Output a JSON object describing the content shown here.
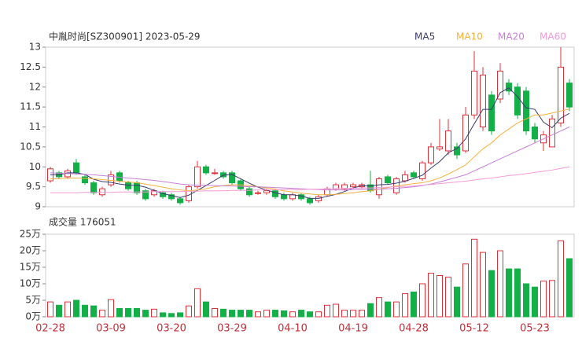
{
  "chart_data": [
    {
      "type": "candlestick",
      "title": "中胤时尚[SZ300901] 2023-05-29",
      "categories": [
        "02-28",
        null,
        null,
        null,
        null,
        null,
        null,
        "03-09",
        null,
        null,
        null,
        null,
        null,
        null,
        "03-20",
        null,
        null,
        null,
        null,
        null,
        null,
        "03-29",
        null,
        null,
        null,
        null,
        null,
        null,
        "04-10",
        null,
        null,
        null,
        null,
        null,
        null,
        "04-19",
        null,
        null,
        null,
        null,
        null,
        null,
        "04-28",
        null,
        null,
        null,
        null,
        null,
        null,
        "05-12",
        null,
        null,
        null,
        null,
        null,
        null,
        "05-23",
        null,
        null,
        null,
        null
      ],
      "open": [
        9.65,
        9.85,
        9.75,
        10.1,
        9.75,
        9.6,
        9.3,
        9.55,
        9.85,
        9.6,
        9.6,
        9.4,
        9.3,
        9.35,
        9.3,
        9.2,
        9.15,
        9.5,
        10.0,
        9.85,
        9.85,
        9.85,
        9.65,
        9.45,
        9.35,
        9.35,
        9.4,
        9.3,
        9.2,
        9.3,
        9.2,
        9.15,
        9.3,
        9.45,
        9.45,
        9.5,
        9.5,
        9.55,
        9.3,
        9.75,
        9.35,
        9.65,
        9.85,
        9.7,
        10.1,
        10.45,
        10.4,
        10.5,
        10.4,
        11.3,
        11.0,
        11.8,
        11.7,
        12.1,
        12.0,
        11.9,
        11.0,
        10.6,
        10.5,
        11.1,
        12.1
      ],
      "high": [
        10.0,
        9.9,
        9.95,
        10.2,
        9.8,
        9.65,
        9.5,
        9.9,
        9.9,
        9.65,
        9.65,
        9.45,
        9.45,
        9.4,
        9.35,
        9.25,
        9.55,
        10.15,
        10.05,
        9.95,
        9.9,
        9.9,
        9.7,
        9.5,
        9.4,
        9.45,
        9.45,
        9.35,
        9.35,
        9.35,
        9.25,
        9.3,
        9.5,
        9.6,
        9.6,
        9.6,
        9.6,
        9.9,
        9.75,
        9.8,
        9.75,
        9.9,
        9.9,
        10.15,
        10.6,
        11.2,
        11.2,
        10.6,
        11.5,
        12.9,
        12.5,
        11.9,
        12.6,
        12.2,
        12.1,
        12.0,
        11.1,
        10.9,
        11.3,
        13.0,
        12.2
      ],
      "low": [
        9.6,
        9.7,
        9.7,
        9.8,
        9.55,
        9.3,
        9.25,
        9.5,
        9.6,
        9.4,
        9.3,
        9.15,
        9.25,
        9.2,
        9.15,
        9.05,
        9.1,
        9.45,
        9.8,
        9.8,
        9.7,
        9.55,
        9.4,
        9.25,
        9.3,
        9.3,
        9.2,
        9.15,
        9.15,
        9.15,
        9.05,
        9.1,
        9.25,
        9.4,
        9.4,
        9.45,
        9.45,
        9.35,
        9.2,
        9.55,
        9.3,
        9.6,
        9.7,
        9.65,
        10.05,
        10.4,
        10.3,
        10.2,
        10.35,
        11.2,
        10.9,
        10.8,
        11.6,
        11.8,
        11.2,
        10.8,
        10.6,
        10.4,
        10.5,
        11.0,
        11.4
      ],
      "close": [
        9.95,
        9.75,
        9.9,
        9.85,
        9.6,
        9.35,
        9.45,
        9.8,
        9.65,
        9.45,
        9.35,
        9.2,
        9.4,
        9.25,
        9.2,
        9.1,
        9.5,
        10.0,
        9.85,
        9.85,
        9.75,
        9.6,
        9.45,
        9.3,
        9.35,
        9.4,
        9.25,
        9.2,
        9.3,
        9.2,
        9.1,
        9.25,
        9.45,
        9.55,
        9.55,
        9.55,
        9.55,
        9.4,
        9.7,
        9.6,
        9.7,
        9.8,
        9.75,
        10.1,
        10.5,
        10.5,
        10.9,
        10.3,
        11.3,
        12.4,
        12.3,
        10.9,
        12.4,
        11.9,
        11.3,
        10.9,
        10.7,
        10.8,
        11.2,
        12.5,
        11.5
      ],
      "up_color": "#e0303a",
      "down_color": "#12b046",
      "series": [
        {
          "name": "MA5",
          "color": "#3a3a6e",
          "values": [
            9.8,
            9.8,
            9.85,
            9.85,
            9.81,
            9.69,
            9.63,
            9.61,
            9.57,
            9.54,
            9.54,
            9.49,
            9.41,
            9.33,
            9.28,
            9.23,
            9.29,
            9.41,
            9.53,
            9.66,
            9.79,
            9.81,
            9.7,
            9.59,
            9.49,
            9.42,
            9.35,
            9.3,
            9.3,
            9.27,
            9.21,
            9.21,
            9.26,
            9.31,
            9.38,
            9.47,
            9.53,
            9.52,
            9.55,
            9.56,
            9.59,
            9.64,
            9.71,
            9.79,
            9.97,
            10.13,
            10.35,
            10.46,
            10.7,
            11.08,
            11.44,
            11.44,
            11.86,
            11.98,
            11.76,
            11.48,
            11.44,
            11.12,
            10.98,
            11.22,
            11.34
          ]
        },
        {
          "name": "MA10",
          "color": "#f5b13d",
          "values": [
            9.7,
            9.7,
            9.72,
            9.72,
            9.71,
            9.7,
            9.68,
            9.66,
            9.64,
            9.62,
            9.6,
            9.57,
            9.53,
            9.49,
            9.45,
            9.42,
            9.4,
            9.42,
            9.45,
            9.5,
            9.53,
            9.55,
            9.55,
            9.53,
            9.5,
            9.47,
            9.44,
            9.4,
            9.37,
            9.34,
            9.32,
            9.3,
            9.3,
            9.31,
            9.33,
            9.35,
            9.38,
            9.4,
            9.44,
            9.48,
            9.52,
            9.55,
            9.58,
            9.6,
            9.65,
            9.72,
            9.82,
            9.93,
            10.05,
            10.25,
            10.45,
            10.6,
            10.8,
            10.95,
            11.1,
            11.2,
            11.3,
            11.3,
            11.35,
            11.4,
            11.45
          ]
        },
        {
          "name": "MA20",
          "color": "#c77fd6",
          "values": [
            9.85,
            9.84,
            9.83,
            9.82,
            9.81,
            9.8,
            9.78,
            9.76,
            9.74,
            9.72,
            9.7,
            9.68,
            9.66,
            9.63,
            9.6,
            9.57,
            9.55,
            9.54,
            9.54,
            9.53,
            9.52,
            9.52,
            9.51,
            9.5,
            9.5,
            9.49,
            9.48,
            9.47,
            9.46,
            9.45,
            9.44,
            9.43,
            9.42,
            9.42,
            9.42,
            9.43,
            9.43,
            9.44,
            9.44,
            9.45,
            9.46,
            9.48,
            9.5,
            9.53,
            9.57,
            9.62,
            9.68,
            9.74,
            9.8,
            9.9,
            10.0,
            10.1,
            10.2,
            10.3,
            10.4,
            10.5,
            10.6,
            10.7,
            10.8,
            10.9,
            11.0
          ]
        },
        {
          "name": "MA60",
          "color": "#f29bd6",
          "values": [
            9.35,
            9.35,
            9.35,
            9.35,
            9.36,
            9.36,
            9.36,
            9.36,
            9.37,
            9.37,
            9.37,
            9.37,
            9.38,
            9.38,
            9.38,
            9.38,
            9.39,
            9.39,
            9.4,
            9.4,
            9.4,
            9.41,
            9.41,
            9.41,
            9.42,
            9.42,
            9.42,
            9.43,
            9.43,
            9.43,
            9.44,
            9.44,
            9.45,
            9.45,
            9.46,
            9.46,
            9.47,
            9.47,
            9.48,
            9.49,
            9.5,
            9.51,
            9.52,
            9.54,
            9.56,
            9.58,
            9.6,
            9.62,
            9.64,
            9.67,
            9.7,
            9.72,
            9.75,
            9.78,
            9.8,
            9.83,
            9.86,
            9.89,
            9.92,
            9.96,
            10.0
          ]
        }
      ],
      "ylim": [
        9,
        13
      ],
      "yticks": [
        9,
        9.5,
        10,
        10.5,
        11,
        11.5,
        12,
        12.5,
        13
      ]
    },
    {
      "type": "bar",
      "title": "成交量 176051",
      "values": [
        45000,
        35000,
        45000,
        50000,
        35000,
        33000,
        20000,
        52000,
        25000,
        25000,
        25000,
        20000,
        23000,
        12000,
        10000,
        12000,
        33000,
        85000,
        45000,
        25000,
        23000,
        20000,
        20000,
        20000,
        15000,
        20000,
        20000,
        18000,
        15000,
        20000,
        15000,
        15000,
        35000,
        38000,
        20000,
        20000,
        20000,
        40000,
        58000,
        45000,
        45000,
        70000,
        75000,
        100000,
        132000,
        125000,
        120000,
        90000,
        160000,
        235000,
        195000,
        140000,
        200000,
        145000,
        145000,
        100000,
        90000,
        108000,
        110000,
        230000,
        176051
      ],
      "ylim": [
        0,
        250000
      ],
      "yticks": [
        {
          "value": 0,
          "label": "0万"
        },
        {
          "value": 50000,
          "label": "5万"
        },
        {
          "value": 100000,
          "label": "10万"
        },
        {
          "value": 150000,
          "label": "15万"
        },
        {
          "value": 200000,
          "label": "20万"
        },
        {
          "value": 250000,
          "label": "25万"
        }
      ]
    }
  ]
}
